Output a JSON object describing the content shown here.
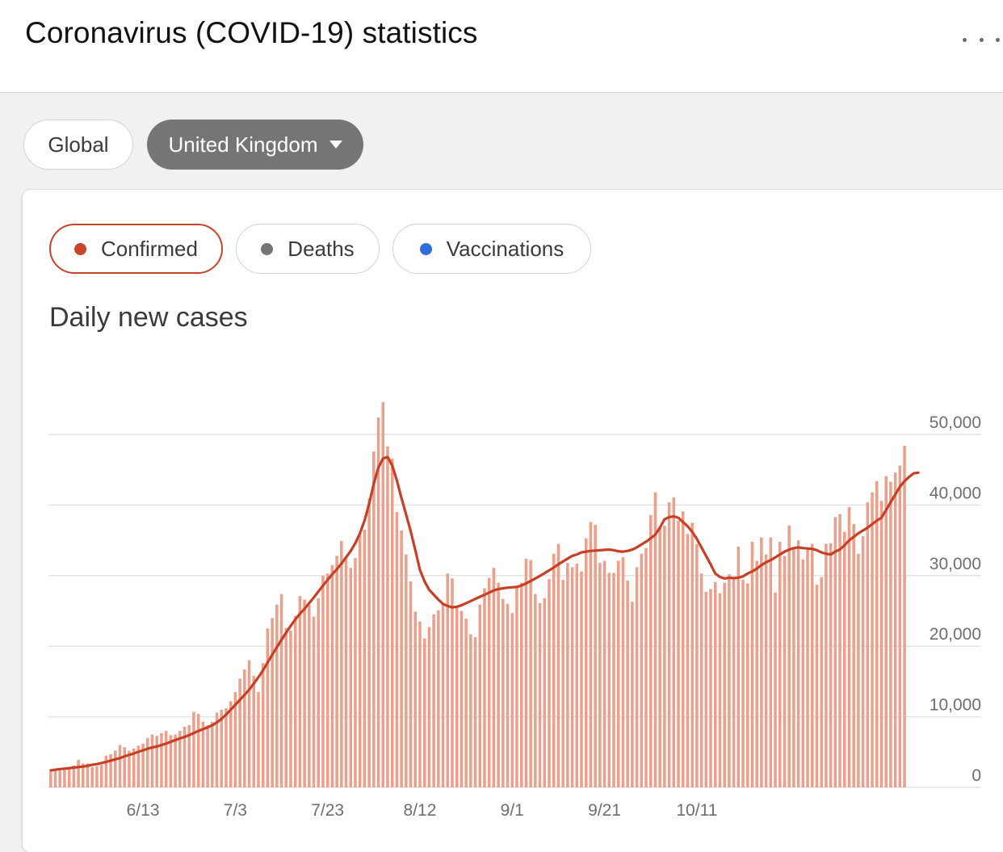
{
  "header": {
    "title": "Coronavirus (COVID-19) statistics",
    "menu_icon": "more-horizontal-icon"
  },
  "region_tabs": {
    "global_label": "Global",
    "country_label": "United Kingdom",
    "dropdown_icon": "caret-down-icon"
  },
  "metric_tabs": [
    {
      "label": "Confirmed",
      "color": "#c9432b",
      "selected": true
    },
    {
      "label": "Deaths",
      "color": "#757575",
      "selected": false
    },
    {
      "label": "Vaccinations",
      "color": "#2f6fdb",
      "selected": false
    }
  ],
  "colors": {
    "bar": "#eaa08b",
    "line": "#c73f25",
    "grid": "#e4e4e4"
  },
  "chart_data": {
    "type": "bar",
    "title": "Daily new cases",
    "xlabel": "",
    "ylabel": "",
    "x_range": [
      "5/24",
      "10/21"
    ],
    "x_tick_labels": [
      "6/13",
      "7/3",
      "7/23",
      "8/12",
      "9/1",
      "9/21",
      "10/11"
    ],
    "y_tick_labels": [
      "0",
      "10,000",
      "20,000",
      "30,000",
      "40,000",
      "50,000"
    ],
    "ylim": [
      0,
      50000
    ],
    "y_axis_side": "right",
    "grid": true,
    "series": [
      {
        "name": "",
        "type": "bar",
        "values": [
          2200,
          2500,
          2400,
          2700,
          2900,
          3100,
          3900,
          3400,
          3400,
          2900,
          3000,
          3200,
          4500,
          4700,
          5200,
          6000,
          5700,
          5200,
          5500,
          5900,
          6200,
          7000,
          7500,
          7300,
          7700,
          8000,
          7400,
          7500,
          8000,
          8600,
          8800,
          10700,
          10400,
          9300,
          8800,
          9300,
          10600,
          11000,
          11200,
          12200,
          13500,
          15400,
          16700,
          18000,
          15800,
          13500,
          17600,
          22500,
          24000,
          25900,
          27400,
          22600,
          22200,
          24300,
          27100,
          26600,
          25900,
          24200,
          26800,
          30000,
          30300,
          31500,
          32800,
          34900,
          32600,
          31100,
          32500,
          35700,
          36500,
          40900,
          47600,
          52400,
          54600,
          48300,
          46600,
          39000,
          36400,
          33000,
          29200,
          24900,
          23500,
          21100,
          22700,
          24500,
          25100,
          26000,
          30300,
          29600,
          25500,
          25000,
          23900,
          21700,
          21300,
          25900,
          28200,
          29700,
          31100,
          29000,
          26700,
          26000,
          24700,
          28400,
          29000,
          32400,
          32200,
          27400,
          26100,
          26800,
          29500,
          33100,
          34500,
          29400,
          31800,
          31200,
          31700,
          30600,
          35300,
          37600,
          37200,
          31800,
          32100,
          30400,
          30400,
          32100,
          32600,
          29300,
          26300,
          31200,
          33100,
          33900,
          38600,
          41800,
          37000,
          37100,
          40400,
          41100,
          37800,
          39100,
          35900,
          37500,
          34500,
          30300,
          27700,
          28100,
          29100,
          27500,
          29000,
          30200,
          29700,
          34100,
          29400,
          28900,
          34800,
          32100,
          35400,
          33000,
          35400,
          27600,
          34800,
          32800,
          37100,
          33800,
          35000,
          32300,
          33700,
          34500,
          28700,
          29800,
          34500,
          34600,
          38300,
          38700,
          36200,
          39700,
          37300,
          33100,
          35600,
          40400,
          41800,
          43400,
          40600,
          44100,
          43300,
          44600,
          45600,
          48400
        ]
      },
      {
        "name": "",
        "type": "line",
        "values": [
          2400,
          2500,
          2600,
          2650,
          2720,
          2800,
          2880,
          2950,
          3050,
          3200,
          3300,
          3450,
          3600,
          3800,
          3980,
          4150,
          4400,
          4600,
          4800,
          5050,
          5250,
          5480,
          5650,
          5800,
          6000,
          6200,
          6450,
          6700,
          6950,
          7150,
          7400,
          7700,
          8000,
          8250,
          8500,
          8800,
          9200,
          9700,
          10300,
          11000,
          11700,
          12400,
          13100,
          13850,
          14700,
          15600,
          16600,
          17700,
          18800,
          19850,
          20900,
          21900,
          22900,
          23800,
          24600,
          25300,
          26100,
          26900,
          27750,
          28600,
          29400,
          30200,
          30900,
          31700,
          32600,
          33500,
          34600,
          36000,
          37800,
          40200,
          43000,
          45300,
          46600,
          46800,
          45600,
          43500,
          41000,
          38700,
          36300,
          33600,
          30800,
          29200,
          28000,
          27300,
          26600,
          26000,
          25700,
          25500,
          25600,
          25800,
          26100,
          26400,
          26700,
          27000,
          27300,
          27600,
          27900,
          28100,
          28200,
          28300,
          28350,
          28400,
          28600,
          28900,
          29250,
          29600,
          29950,
          30350,
          30750,
          31150,
          31600,
          32000,
          32400,
          32800,
          33000,
          33300,
          33400,
          33500,
          33550,
          33600,
          33650,
          33700,
          33600,
          33450,
          33400,
          33500,
          33700,
          34000,
          34400,
          34800,
          35300,
          35800,
          36800,
          38000,
          38300,
          38400,
          38200,
          37600,
          37000,
          36200,
          35200,
          34000,
          32800,
          31600,
          30300,
          29800,
          29600,
          29700,
          29650,
          29700,
          29900,
          30300,
          30600,
          31000,
          31500,
          31900,
          32200,
          32600,
          33000,
          33400,
          33700,
          33900,
          34000,
          33900,
          33850,
          33800,
          33600,
          33300,
          33100,
          33000,
          33400,
          33700,
          34300,
          35000,
          35500,
          36000,
          36400,
          36800,
          37300,
          37800,
          38200,
          39300,
          40400,
          41500,
          42600,
          43400,
          44000,
          44500,
          44600
        ]
      }
    ]
  }
}
